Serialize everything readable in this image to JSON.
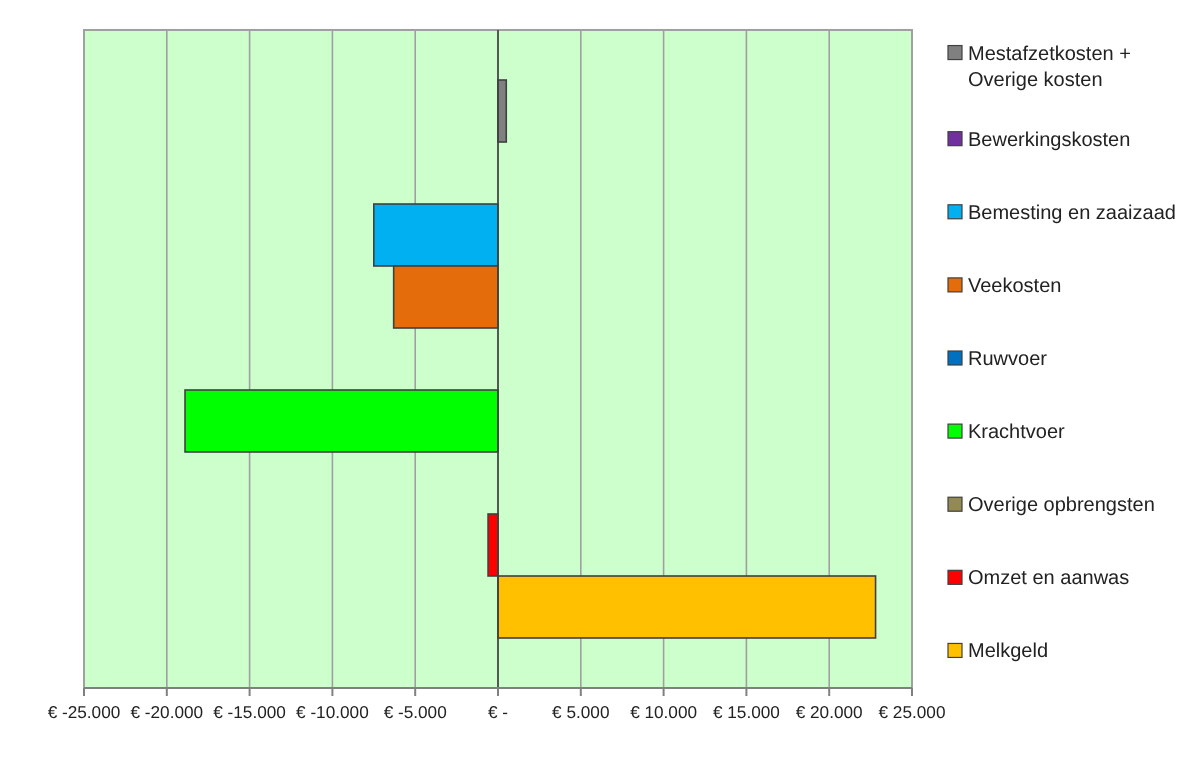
{
  "chart_data": {
    "type": "bar",
    "orientation": "horizontal",
    "categories": [
      null
    ],
    "series": [
      {
        "name": "Mestafzetkosten + Overige kosten",
        "color": "#808080",
        "values": [
          500
        ]
      },
      {
        "name": "Bewerkingskosten",
        "color": "#7030a0",
        "values": [
          0
        ]
      },
      {
        "name": "Bemesting en zaaizaad",
        "color": "#00b0f0",
        "values": [
          -7500
        ]
      },
      {
        "name": "Veekosten",
        "color": "#e46c0a",
        "values": [
          -6300
        ]
      },
      {
        "name": "Ruwvoer",
        "color": "#0070c0",
        "values": [
          0
        ]
      },
      {
        "name": "Krachtvoer",
        "color": "#00ff00",
        "values": [
          -18900
        ]
      },
      {
        "name": "Overige opbrengsten",
        "color": "#938953",
        "values": [
          0
        ]
      },
      {
        "name": "Omzet en aanwas",
        "color": "#ff0000",
        "values": [
          -600
        ]
      },
      {
        "name": "Melkgeld",
        "color": "#ffc000",
        "values": [
          22800
        ]
      }
    ],
    "xlim": [
      -25000,
      25000
    ],
    "xticks": [
      {
        "value": -25000,
        "label": "€ -25.000"
      },
      {
        "value": -20000,
        "label": "€ -20.000"
      },
      {
        "value": -15000,
        "label": "€ -15.000"
      },
      {
        "value": -10000,
        "label": "€ -10.000"
      },
      {
        "value": -5000,
        "label": "€ -5.000"
      },
      {
        "value": 0,
        "label": "€ -"
      },
      {
        "value": 5000,
        "label": "€ 5.000"
      },
      {
        "value": 10000,
        "label": "€ 10.000"
      },
      {
        "value": 15000,
        "label": "€ 15.000"
      },
      {
        "value": 20000,
        "label": "€ 20.000"
      },
      {
        "value": 25000,
        "label": "€ 25.000"
      }
    ],
    "grid": "x",
    "legend": "right"
  }
}
